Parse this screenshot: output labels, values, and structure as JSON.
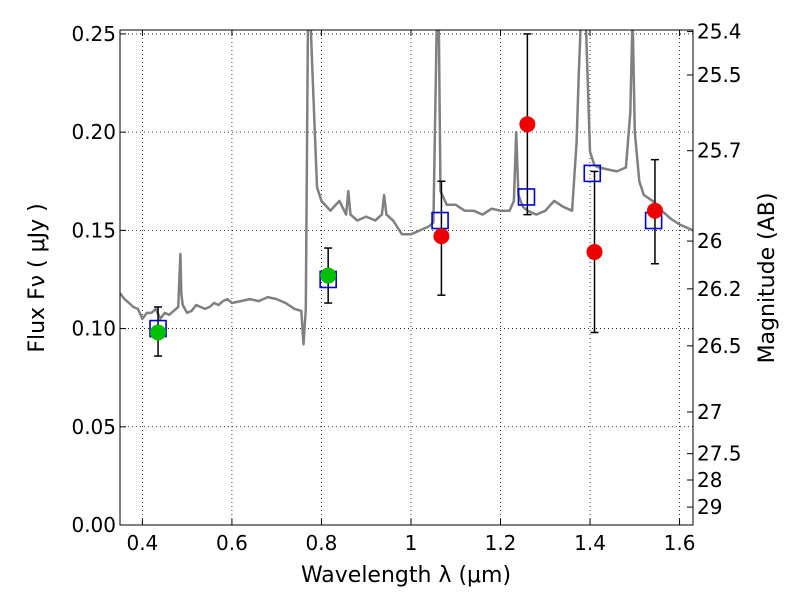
{
  "chart_data": {
    "type": "scatter",
    "title": "",
    "xlabel": "Wavelength  λ (μm)",
    "ylabel": "Flux  Fν  ( μJy )",
    "ylabel_right": "Magnitude (AB)",
    "xlim": [
      0.35,
      1.63
    ],
    "ylim": [
      0.0,
      0.252
    ],
    "grid": "dotted",
    "x_ticks": [
      {
        "value": 0.4,
        "label": "0.4"
      },
      {
        "value": 0.6,
        "label": "0.6"
      },
      {
        "value": 0.8,
        "label": "0.8"
      },
      {
        "value": 1.0,
        "label": "1"
      },
      {
        "value": 1.2,
        "label": "1.2"
      },
      {
        "value": 1.4,
        "label": "1.4"
      },
      {
        "value": 1.6,
        "label": "1.6"
      }
    ],
    "y_ticks": [
      {
        "value": 0.0,
        "label": "0.00"
      },
      {
        "value": 0.05,
        "label": "0.05"
      },
      {
        "value": 0.1,
        "label": "0.10"
      },
      {
        "value": 0.15,
        "label": "0.15"
      },
      {
        "value": 0.2,
        "label": "0.20"
      },
      {
        "value": 0.25,
        "label": "0.25"
      }
    ],
    "right_ticks": [
      {
        "value": 25.4,
        "label": "25.4"
      },
      {
        "value": 25.5,
        "label": "25.5"
      },
      {
        "value": 25.7,
        "label": "25.7"
      },
      {
        "value": 26,
        "label": "26"
      },
      {
        "value": 26.2,
        "label": "26.2"
      },
      {
        "value": 26.5,
        "label": "26.5"
      },
      {
        "value": 27,
        "label": "27"
      },
      {
        "value": 27.5,
        "label": "27.5"
      },
      {
        "value": 28,
        "label": "28"
      },
      {
        "value": 29,
        "label": "29"
      }
    ],
    "series": [
      {
        "kind": "line",
        "color": "#808080",
        "x": [
          0.35,
          0.36,
          0.37,
          0.38,
          0.39,
          0.4,
          0.41,
          0.42,
          0.43,
          0.44,
          0.45,
          0.46,
          0.47,
          0.48,
          0.485,
          0.487,
          0.49,
          0.5,
          0.51,
          0.52,
          0.53,
          0.54,
          0.55,
          0.56,
          0.57,
          0.58,
          0.59,
          0.6,
          0.62,
          0.64,
          0.66,
          0.68,
          0.7,
          0.72,
          0.74,
          0.755,
          0.76,
          0.765,
          0.77,
          0.775,
          0.78,
          0.79,
          0.8,
          0.82,
          0.84,
          0.855,
          0.86,
          0.865,
          0.88,
          0.9,
          0.92,
          0.935,
          0.94,
          0.945,
          0.96,
          0.98,
          1.0,
          1.02,
          1.04,
          1.05,
          1.058,
          1.062,
          1.066,
          1.08,
          1.1,
          1.12,
          1.14,
          1.16,
          1.18,
          1.2,
          1.22,
          1.23,
          1.235,
          1.24,
          1.25,
          1.26,
          1.28,
          1.3,
          1.32,
          1.34,
          1.36,
          1.37,
          1.375,
          1.38,
          1.39,
          1.4,
          1.41,
          1.42,
          1.44,
          1.46,
          1.48,
          1.49,
          1.495,
          1.5,
          1.51,
          1.52,
          1.54,
          1.56,
          1.58,
          1.6,
          1.63
        ],
        "y": [
          0.118,
          0.115,
          0.113,
          0.111,
          0.11,
          0.105,
          0.108,
          0.108,
          0.11,
          0.105,
          0.108,
          0.107,
          0.109,
          0.111,
          0.138,
          0.118,
          0.112,
          0.108,
          0.109,
          0.112,
          0.111,
          0.11,
          0.111,
          0.113,
          0.112,
          0.114,
          0.115,
          0.113,
          0.114,
          0.115,
          0.114,
          0.116,
          0.115,
          0.113,
          0.11,
          0.109,
          0.092,
          0.11,
          0.26,
          0.26,
          0.23,
          0.172,
          0.165,
          0.16,
          0.165,
          0.158,
          0.17,
          0.158,
          0.155,
          0.157,
          0.155,
          0.158,
          0.168,
          0.158,
          0.155,
          0.148,
          0.148,
          0.15,
          0.152,
          0.154,
          0.26,
          0.26,
          0.17,
          0.163,
          0.163,
          0.16,
          0.16,
          0.158,
          0.161,
          0.16,
          0.16,
          0.165,
          0.2,
          0.168,
          0.162,
          0.16,
          0.158,
          0.16,
          0.165,
          0.162,
          0.16,
          0.195,
          0.23,
          0.26,
          0.26,
          0.19,
          0.183,
          0.182,
          0.181,
          0.18,
          0.182,
          0.21,
          0.26,
          0.2,
          0.175,
          0.168,
          0.165,
          0.16,
          0.156,
          0.153,
          0.15
        ]
      },
      {
        "kind": "squares",
        "color": "#0000cc",
        "x": [
          0.435,
          0.815,
          1.065,
          1.258,
          1.405,
          1.542
        ],
        "y": [
          0.1,
          0.125,
          0.155,
          0.167,
          0.179,
          0.155
        ]
      },
      {
        "kind": "points",
        "color": "#00c000",
        "x": [
          0.435,
          0.815
        ],
        "y": [
          0.098,
          0.127
        ],
        "err_low": [
          0.086,
          0.113
        ],
        "err_high": [
          0.111,
          0.141
        ]
      },
      {
        "kind": "points",
        "color": "#ee0000",
        "x": [
          1.068,
          1.26,
          1.41,
          1.545
        ],
        "y": [
          0.147,
          0.204,
          0.139,
          0.16
        ],
        "err_low": [
          0.117,
          0.158,
          0.098,
          0.133
        ],
        "err_high": [
          0.175,
          0.25,
          0.18,
          0.186
        ]
      }
    ]
  }
}
